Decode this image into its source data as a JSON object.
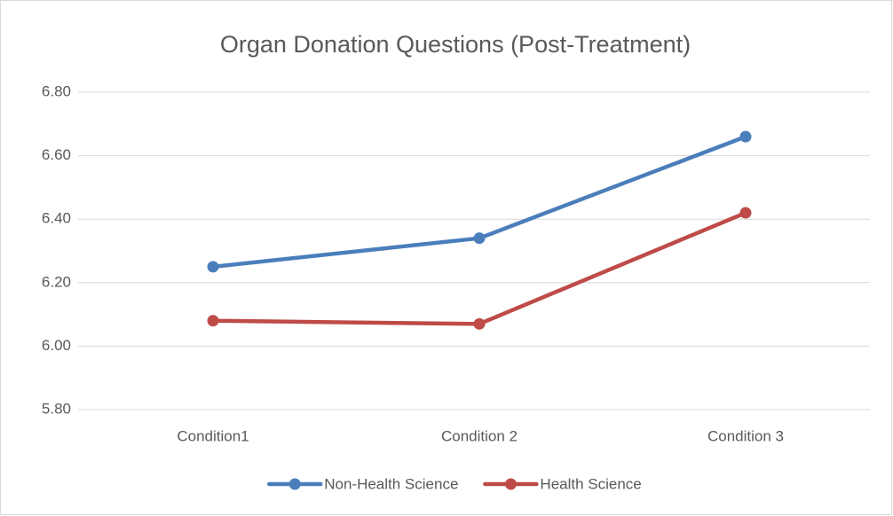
{
  "chart_data": {
    "type": "line",
    "title": "Organ Donation Questions (Post-Treatment)",
    "categories": [
      "Condition1",
      "Condition 2",
      "Condition 3"
    ],
    "series": [
      {
        "name": "Non-Health Science",
        "color": "#4a7ebb",
        "values": [
          6.25,
          6.34,
          6.66
        ]
      },
      {
        "name": "Health Science",
        "color": "#be4b48",
        "values": [
          6.08,
          6.07,
          6.42
        ]
      }
    ],
    "ylim": [
      5.8,
      6.8
    ],
    "yticks": [
      {
        "value": 5.8,
        "label": "5.80"
      },
      {
        "value": 6.0,
        "label": "6.00"
      },
      {
        "value": 6.2,
        "label": "6.20"
      },
      {
        "value": 6.4,
        "label": "6.40"
      },
      {
        "value": 6.6,
        "label": "6.60"
      },
      {
        "value": 6.8,
        "label": "6.80"
      }
    ],
    "grid": true,
    "legend": "bottom"
  }
}
